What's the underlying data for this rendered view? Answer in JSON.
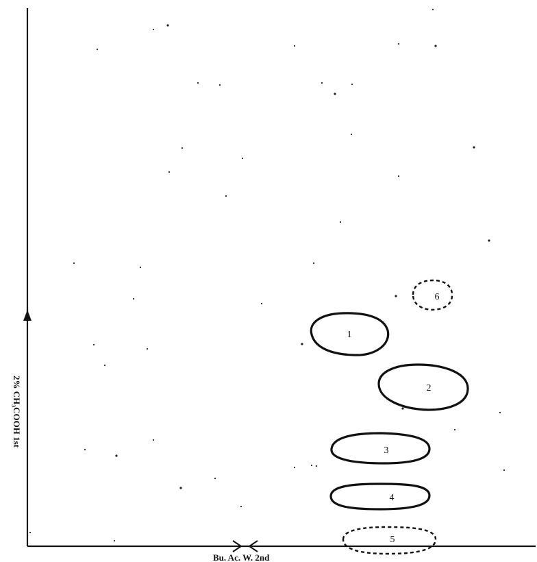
{
  "axes": {
    "first_dimension_label": "2% CH₃COOH 1st",
    "second_dimension_label": "Bu. Ac. W. 2nd"
  },
  "spots": [
    {
      "id": "spot-1",
      "label": "1",
      "style": "solid"
    },
    {
      "id": "spot-2",
      "label": "2",
      "style": "solid"
    },
    {
      "id": "spot-3",
      "label": "3",
      "style": "solid"
    },
    {
      "id": "spot-4",
      "label": "4",
      "style": "solid"
    },
    {
      "id": "spot-5",
      "label": "5",
      "style": "dashed"
    },
    {
      "id": "spot-6",
      "label": "6",
      "style": "dashed"
    }
  ]
}
